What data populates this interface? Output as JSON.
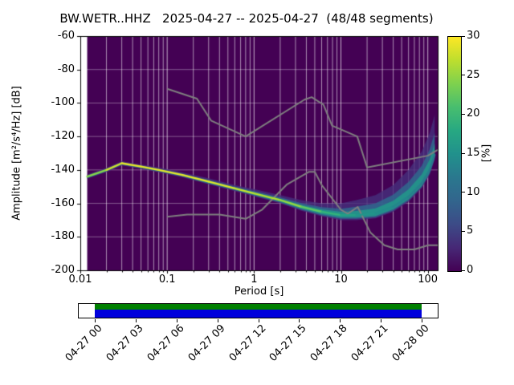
{
  "figure": {
    "title": "BW.WETR..HHZ   2025-04-27 -- 2025-04-27  (48/48 segments)"
  },
  "axes": {
    "ylabel": "Amplitude [m²/s⁴/Hz] [dB]",
    "xlabel": "Period [s]",
    "x_ticks": [
      "0.01",
      "0.1",
      "1",
      "10",
      "100"
    ],
    "y_ticks": [
      "-60",
      "-80",
      "-100",
      "-120",
      "-140",
      "-160",
      "-180",
      "-200"
    ]
  },
  "colorbar": {
    "label": "[%]",
    "ticks": [
      "0",
      "5",
      "10",
      "15",
      "20",
      "25",
      "30"
    ],
    "min": 0,
    "max": 30,
    "colormap": "viridis"
  },
  "timeline": {
    "tick_labels": [
      "04-27 00",
      "04-27 03",
      "04-27 06",
      "04-27 09",
      "04-27 12",
      "04-27 15",
      "04-27 18",
      "04-27 21",
      "04-28 00"
    ],
    "bar_color_top": "#008000",
    "bar_color_bottom": "#0000dc"
  },
  "chart_data": {
    "type": "heatmap",
    "title": "BW.WETR..HHZ 2025-04-27 -- 2025-04-27 (48/48 segments)",
    "xlabel": "Period [s]",
    "ylabel": "Amplitude [m²/s⁴/Hz] [dB]",
    "xscale": "log",
    "xlim": [
      0.01,
      130
    ],
    "ylim": [
      -200,
      -60
    ],
    "grid": true,
    "background_percent": 0,
    "data_period_min": 0.012,
    "colorbar": {
      "label": "[%]",
      "min": 0,
      "max": 30
    },
    "psd_mode": {
      "comment": "dominant probability ridge of the PPSD, percent = colorbar value of the mode, spread_up_db = vertical spread of the distribution above the mode",
      "periods": [
        0.012,
        0.02,
        0.03,
        0.05,
        0.08,
        0.15,
        0.3,
        0.6,
        1,
        2,
        3.5,
        6,
        10,
        15,
        25,
        40,
        60,
        85,
        105,
        120
      ],
      "db": [
        -144,
        -140,
        -136,
        -138,
        -140,
        -143,
        -147,
        -151,
        -154,
        -158,
        -162,
        -165,
        -167,
        -167,
        -166,
        -162,
        -156,
        -148,
        -140,
        -131
      ],
      "percent": [
        22,
        27,
        29,
        29,
        29,
        29,
        29,
        28,
        27,
        26,
        24,
        21,
        18,
        16,
        15,
        14,
        13,
        13,
        12,
        12
      ],
      "spread_up_db": [
        1.2,
        1.2,
        1.2,
        1.2,
        1.5,
        1.5,
        2,
        2,
        2.5,
        3,
        4,
        5,
        7,
        9,
        11,
        13,
        16,
        19,
        22,
        24
      ]
    },
    "noise_models": {
      "high": {
        "name": "Peterson NHNM",
        "periods": [
          0.1,
          0.22,
          0.32,
          0.8,
          3.8,
          4.6,
          6.3,
          7.9,
          15.4,
          20,
          100,
          130
        ],
        "db": [
          -91.5,
          -97.4,
          -110.5,
          -120,
          -98,
          -96.5,
          -101,
          -113.5,
          -120,
          -138.5,
          -131.5,
          -128
        ]
      },
      "low": {
        "name": "Peterson NLNM",
        "periods": [
          0.1,
          0.17,
          0.4,
          0.8,
          1.24,
          2.4,
          4.3,
          5,
          6,
          10,
          12,
          15.6,
          21.9,
          31.6,
          45,
          70,
          101,
          130
        ],
        "db": [
          -168,
          -166.7,
          -166.7,
          -169.2,
          -163.7,
          -148.6,
          -141.1,
          -141.1,
          -149,
          -163.8,
          -166.2,
          -162.1,
          -177.5,
          -185,
          -187.5,
          -187.5,
          -185,
          -185
        ]
      }
    },
    "coverage": {
      "start_label": "04-27 00",
      "end_label": "04-28 00",
      "segments": "48/48"
    }
  }
}
